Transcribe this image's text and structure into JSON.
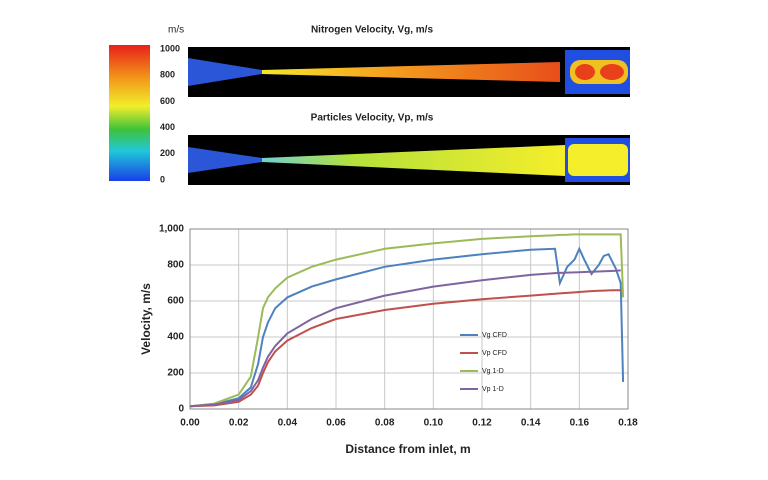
{
  "chart_data": [
    {
      "type": "contour",
      "colorbar_label": "m/s",
      "clim": [
        0,
        1000
      ],
      "colorbar_ticks": [
        1000,
        800,
        600,
        400,
        200,
        0
      ],
      "panels": [
        {
          "title": "Nitrogen Velocity, Vg, m/s"
        },
        {
          "title": "Particles Velocity, Vp, m/s"
        }
      ]
    },
    {
      "type": "line",
      "xlabel": "Distance from inlet, m",
      "ylabel": "Velocity, m/s",
      "xlim": [
        0,
        0.18
      ],
      "ylim": [
        0,
        1000
      ],
      "xticks": [
        {
          "value": 0,
          "label": "0.00"
        },
        {
          "value": 0.02,
          "label": "0.02"
        },
        {
          "value": 0.04,
          "label": "0.04"
        },
        {
          "value": 0.06,
          "label": "0.06"
        },
        {
          "value": 0.08,
          "label": "0.08"
        },
        {
          "value": 0.1,
          "label": "0.10"
        },
        {
          "value": 0.12,
          "label": "0.12"
        },
        {
          "value": 0.14,
          "label": "0.14"
        },
        {
          "value": 0.16,
          "label": "0.16"
        },
        {
          "value": 0.18,
          "label": "0.18"
        }
      ],
      "yticks": [
        0,
        200,
        400,
        600,
        800,
        {
          "value": 1000,
          "label": "1,000"
        }
      ],
      "grid": true,
      "x": [
        0,
        0.01,
        0.02,
        0.025,
        0.028,
        0.03,
        0.032,
        0.035,
        0.04,
        0.05,
        0.06,
        0.08,
        0.1,
        0.12,
        0.14,
        0.15,
        0.152,
        0.155,
        0.158,
        0.16,
        0.162,
        0.165,
        0.168,
        0.17,
        0.172,
        0.175,
        0.177,
        0.178
      ],
      "series": [
        {
          "name": "Vg CFD",
          "color": "#4f81bd",
          "values": [
            15,
            25,
            60,
            120,
            250,
            400,
            480,
            560,
            620,
            680,
            720,
            790,
            830,
            860,
            885,
            890,
            700,
            790,
            830,
            890,
            830,
            750,
            800,
            850,
            860,
            780,
            700,
            150
          ]
        },
        {
          "name": "Vp CFD",
          "color": "#c0504d",
          "values": [
            15,
            20,
            40,
            80,
            130,
            200,
            260,
            320,
            380,
            450,
            500,
            550,
            585,
            610,
            630,
            640,
            642,
            645,
            648,
            650,
            652,
            655,
            657,
            658,
            659,
            660,
            660,
            null
          ]
        },
        {
          "name": "Vg 1-D",
          "color": "#9bbb59",
          "values": [
            15,
            30,
            80,
            180,
            400,
            560,
            620,
            670,
            730,
            790,
            830,
            890,
            920,
            945,
            960,
            965,
            967,
            968,
            970,
            970,
            970,
            970,
            970,
            970,
            970,
            970,
            970,
            620
          ]
        },
        {
          "name": "Vp 1-D",
          "color": "#8064a2",
          "values": [
            15,
            25,
            50,
            100,
            160,
            230,
            290,
            350,
            420,
            500,
            560,
            630,
            680,
            715,
            745,
            755,
            756,
            758,
            759,
            760,
            761,
            763,
            764,
            765,
            766,
            768,
            770,
            null
          ]
        }
      ]
    }
  ]
}
